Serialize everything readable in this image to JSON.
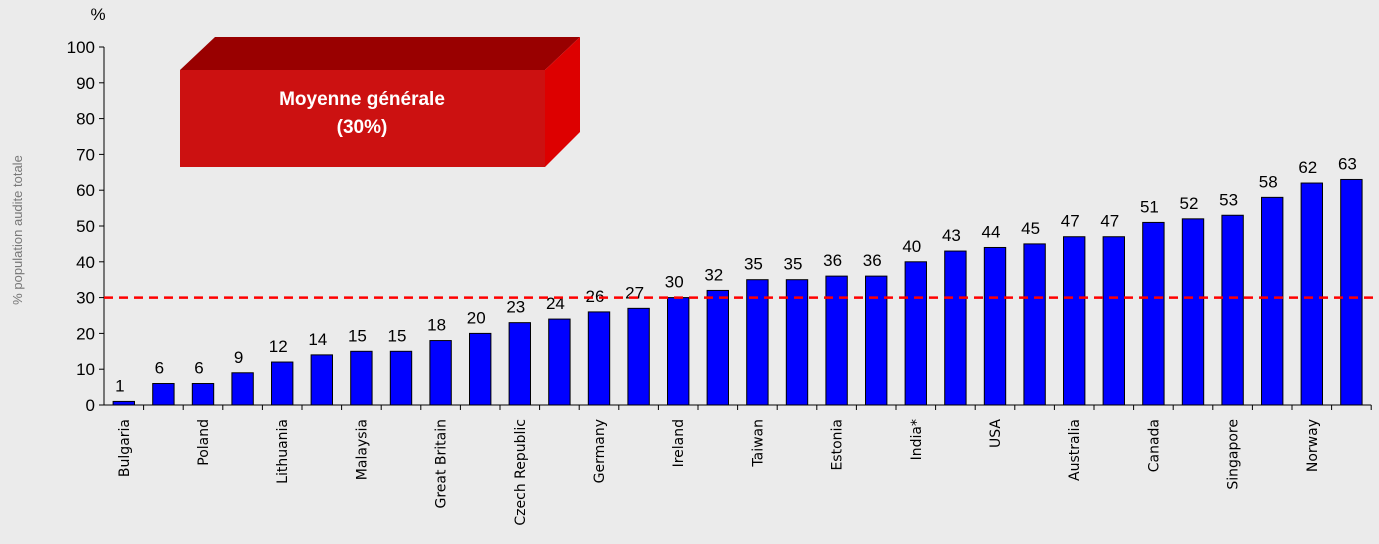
{
  "chart_data": {
    "type": "bar",
    "y_unit": "%",
    "y_axis_label": "% population audite totale",
    "annotation": [
      "Moyenne générale",
      "(30%)"
    ],
    "reference_line": 30,
    "reference_color": "#ff0000",
    "categories": [
      "Bulgaria",
      null,
      "Poland",
      null,
      "Lithuania",
      null,
      "Malaysia",
      null,
      "Great Britain",
      null,
      "Czech Republic",
      null,
      "Germany",
      null,
      "Ireland",
      null,
      "Taiwan",
      null,
      "Estonia",
      null,
      "India*",
      null,
      "USA",
      null,
      "Australia",
      null,
      "Canada",
      null,
      "Singapore",
      null,
      "Norway",
      null
    ],
    "values": [
      1,
      6,
      6,
      9,
      12,
      14,
      15,
      15,
      18,
      20,
      23,
      24,
      26,
      27,
      30,
      32,
      35,
      35,
      36,
      36,
      40,
      43,
      44,
      45,
      47,
      47,
      51,
      52,
      53,
      58,
      62,
      63
    ],
    "color": "#0000ff",
    "ylim": [
      0,
      100
    ],
    "yticks": [
      0,
      10,
      20,
      30,
      40,
      50,
      60,
      70,
      80,
      90,
      100
    ]
  }
}
